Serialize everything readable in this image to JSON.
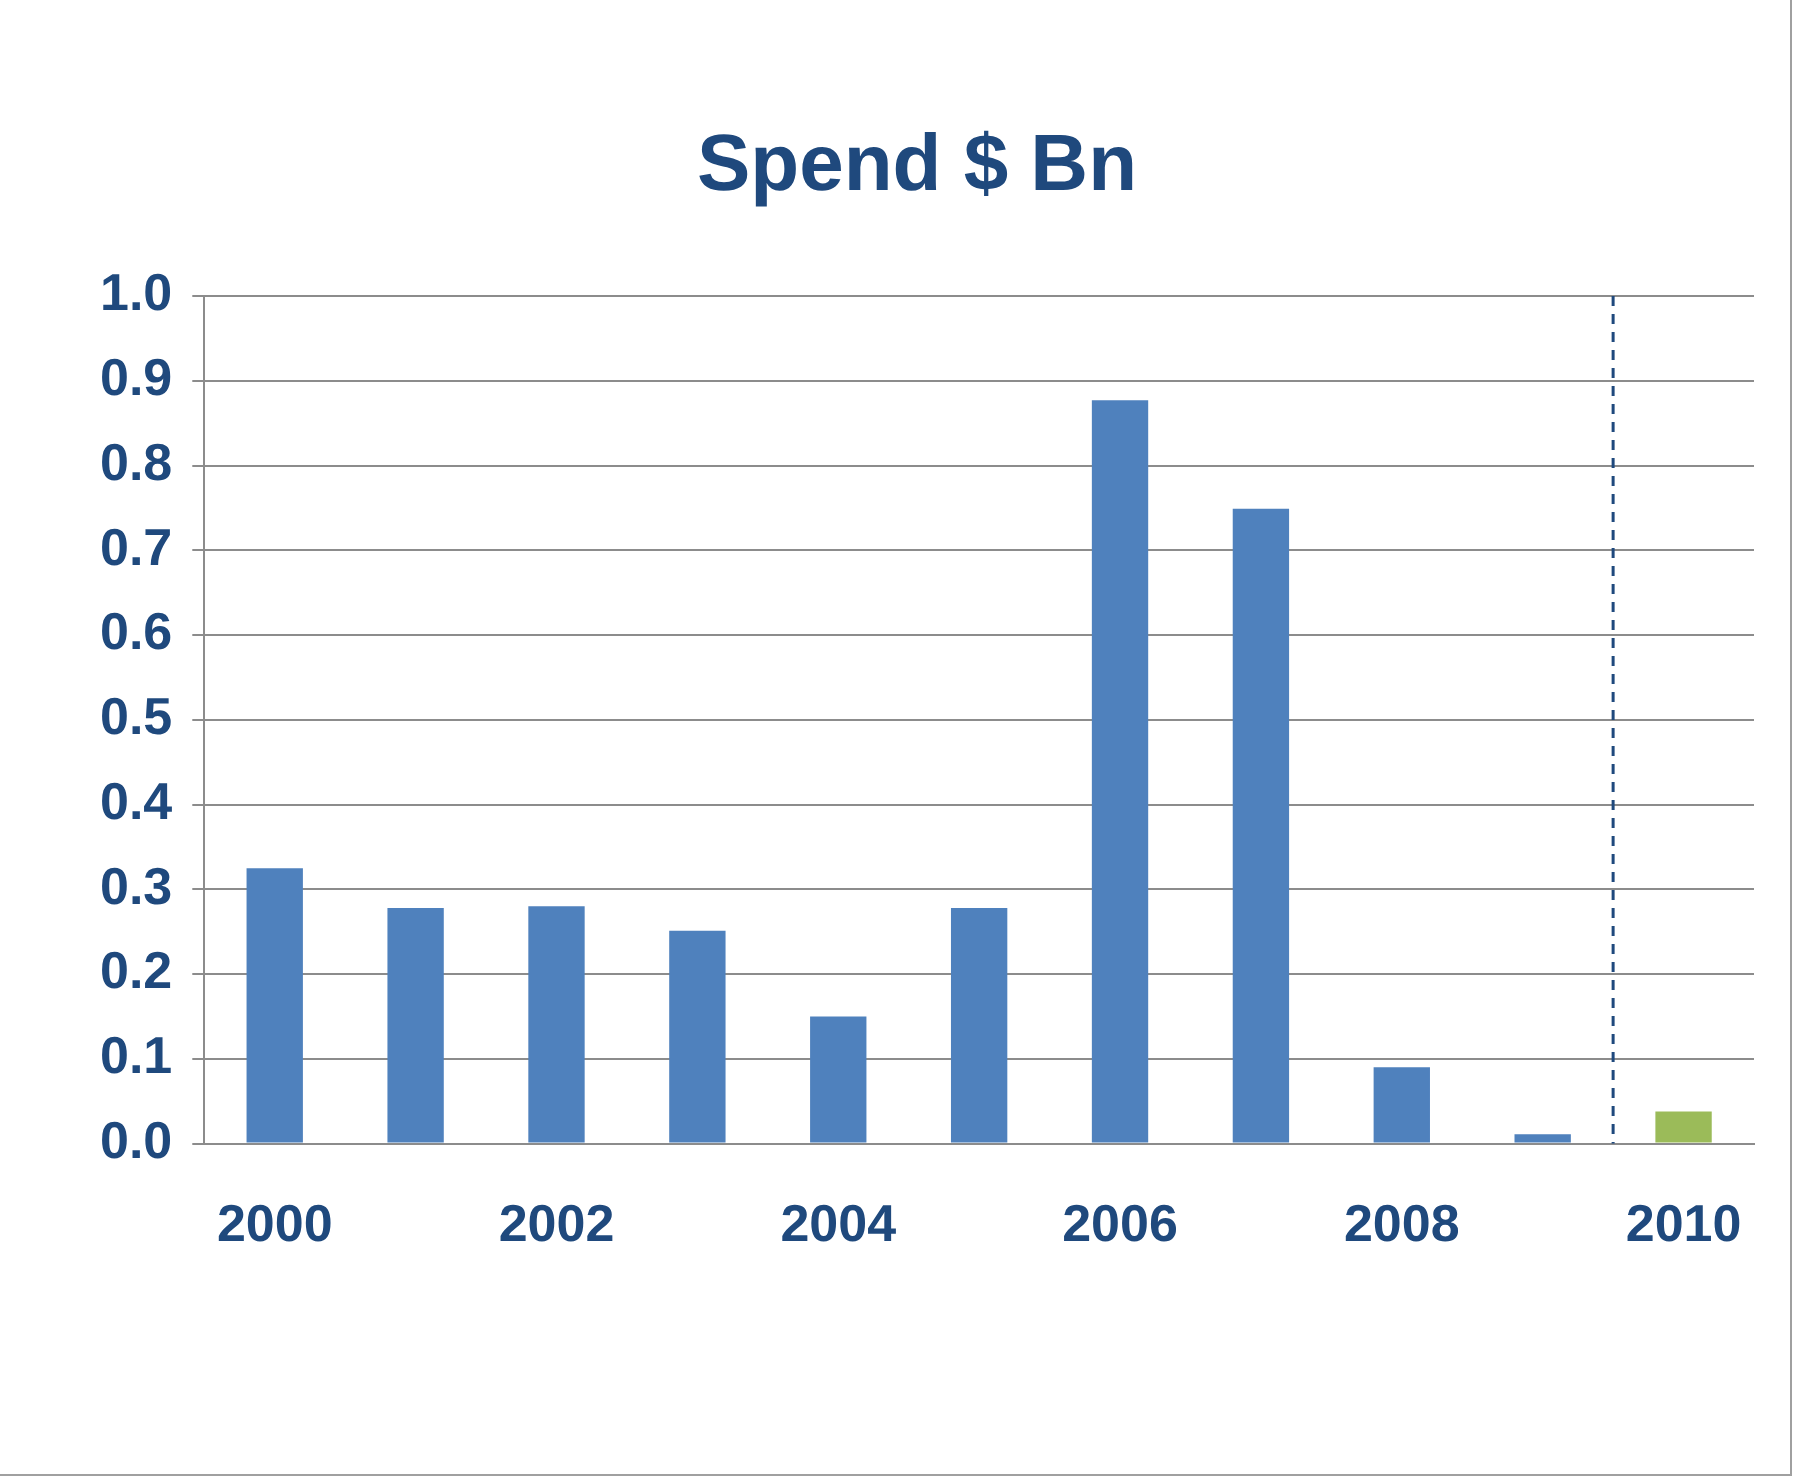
{
  "chart_data": {
    "type": "bar",
    "title": "Spend $ Bn",
    "x": [
      2000,
      2001,
      2002,
      2003,
      2004,
      2005,
      2006,
      2007,
      2008,
      2009,
      2010
    ],
    "values": [
      0.325,
      0.278,
      0.28,
      0.251,
      0.15,
      0.278,
      0.877,
      0.749,
      0.09,
      0.011,
      0.038
    ],
    "colors": [
      "#4f81bd",
      "#4f81bd",
      "#4f81bd",
      "#4f81bd",
      "#4f81bd",
      "#4f81bd",
      "#4f81bd",
      "#4f81bd",
      "#4f81bd",
      "#4f81bd",
      "#9bbb59"
    ],
    "xlim": [
      1999.5,
      2010.5
    ],
    "xticks": [
      2000,
      2002,
      2004,
      2006,
      2008,
      2010
    ],
    "ylim": [
      0,
      1
    ],
    "yticks": [
      {
        "value": 0,
        "label": "0.0"
      },
      {
        "value": 0.1,
        "label": "0.1"
      },
      {
        "value": 0.2,
        "label": "0.2"
      },
      {
        "value": 0.3,
        "label": "0.3"
      },
      {
        "value": 0.4,
        "label": "0.4"
      },
      {
        "value": 0.5,
        "label": "0.5"
      },
      {
        "value": 0.6,
        "label": "0.6"
      },
      {
        "value": 0.7,
        "label": "0.7"
      },
      {
        "value": 0.8,
        "label": "0.8"
      },
      {
        "value": 0.9,
        "label": "0.9"
      },
      {
        "value": 1,
        "label": "1.0"
      }
    ],
    "grid": "y",
    "ref_lines": [
      {
        "axis": "x",
        "value": 2009.5,
        "color": "#1f497d",
        "line_style": "dashed"
      }
    ]
  }
}
